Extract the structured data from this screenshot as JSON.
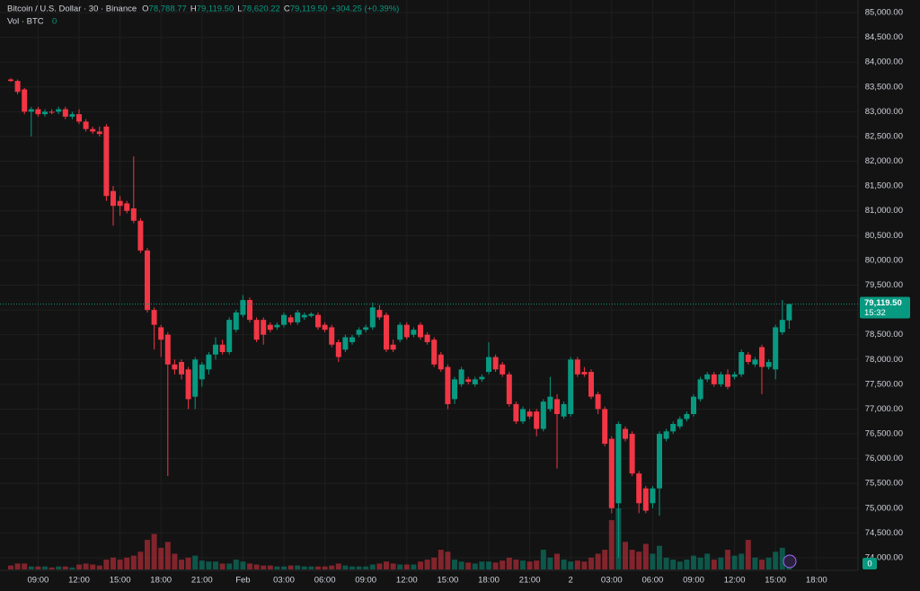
{
  "chart_data": {
    "type": "candlestick",
    "title": "Bitcoin / U.S. Dollar · 30 · Binance",
    "header": [
      {
        "key": "O",
        "value": "78,788.77"
      },
      {
        "key": "H",
        "value": "79,119.50"
      },
      {
        "key": "L",
        "value": "78,620.22"
      },
      {
        "key": "C",
        "value": "79,119.50"
      }
    ],
    "change": "+304.25 (+0.39%)",
    "volume_title": "Vol · BTC",
    "volume_value": "0",
    "volume_axis_label": "0",
    "last_price": {
      "value": 79119.5,
      "label": "79,119.50"
    },
    "countdown": "15:32",
    "up_color": "#089981",
    "down_color": "#f23645",
    "grid": true,
    "categories": [
      null,
      null,
      null,
      null,
      "09:00",
      null,
      null,
      null,
      null,
      null,
      "12:00",
      null,
      null,
      null,
      null,
      null,
      "15:00",
      null,
      null,
      null,
      null,
      null,
      "18:00",
      null,
      null,
      null,
      null,
      null,
      "21:00",
      null,
      null,
      null,
      null,
      null,
      "Feb",
      null,
      null,
      null,
      null,
      null,
      "03:00",
      null,
      null,
      null,
      null,
      null,
      "06:00",
      null,
      null,
      null,
      null,
      null,
      "09:00",
      null,
      null,
      null,
      null,
      null,
      "12:00",
      null,
      null,
      null,
      null,
      null,
      "15:00",
      null,
      null,
      null,
      null,
      null,
      "18:00",
      null,
      null,
      null,
      null,
      null,
      "21:00",
      null,
      null,
      null,
      null,
      null,
      "2",
      null,
      null,
      null,
      null,
      null,
      "03:00",
      null,
      null,
      null,
      null,
      null,
      "06:00",
      null,
      null,
      null,
      null,
      null,
      "09:00",
      null,
      null,
      null,
      null,
      null,
      "12:00",
      null,
      null,
      null,
      null,
      null,
      "15:00",
      null,
      null,
      null,
      null,
      null,
      "18:00"
    ],
    "ohlc": [
      [
        83650,
        83680,
        83600,
        83620
      ],
      [
        83620,
        83650,
        83350,
        83400
      ],
      [
        83450,
        83480,
        82950,
        83000
      ],
      [
        83000,
        83100,
        82500,
        83050
      ],
      [
        83050,
        83100,
        82900,
        82950
      ],
      [
        82950,
        83050,
        82900,
        83000
      ],
      [
        83000,
        83050,
        82950,
        82980
      ],
      [
        83000,
        83100,
        82950,
        83050
      ],
      [
        83050,
        83100,
        82850,
        82900
      ],
      [
        82900,
        83000,
        82850,
        82950
      ],
      [
        82950,
        83050,
        82750,
        82800
      ],
      [
        82800,
        82850,
        82600,
        82650
      ],
      [
        82650,
        82700,
        82550,
        82600
      ],
      [
        82600,
        82700,
        82500,
        82550
      ],
      [
        82700,
        82750,
        81200,
        81300
      ],
      [
        81400,
        81500,
        80700,
        81100
      ],
      [
        81200,
        81300,
        80900,
        81100
      ],
      [
        81150,
        81200,
        80950,
        81000
      ],
      [
        81050,
        82100,
        80750,
        80800
      ],
      [
        80800,
        80850,
        80150,
        80200
      ],
      [
        80200,
        80250,
        78950,
        79000
      ],
      [
        79000,
        79050,
        78200,
        78700
      ],
      [
        78650,
        78700,
        78050,
        78400
      ],
      [
        78500,
        78550,
        75650,
        77900
      ],
      [
        77900,
        78000,
        77700,
        77800
      ],
      [
        77950,
        78000,
        77600,
        77700
      ],
      [
        77800,
        77850,
        77000,
        77200
      ],
      [
        77250,
        78050,
        77000,
        78000
      ],
      [
        77600,
        77950,
        77450,
        77900
      ],
      [
        77800,
        78150,
        77700,
        78100
      ],
      [
        78100,
        78450,
        78000,
        78300
      ],
      [
        78300,
        78400,
        78100,
        78150
      ],
      [
        78150,
        78850,
        78100,
        78800
      ],
      [
        78600,
        79000,
        78550,
        78950
      ],
      [
        78900,
        79300,
        78850,
        79200
      ],
      [
        79200,
        79250,
        78750,
        78800
      ],
      [
        78800,
        78850,
        78350,
        78400
      ],
      [
        78800,
        78850,
        78300,
        78500
      ],
      [
        78700,
        78750,
        78550,
        78600
      ],
      [
        78650,
        78750,
        78600,
        78700
      ],
      [
        78700,
        78950,
        78650,
        78900
      ],
      [
        78850,
        78900,
        78700,
        78750
      ],
      [
        78750,
        79000,
        78700,
        78950
      ],
      [
        78850,
        78950,
        78800,
        78900
      ],
      [
        78880,
        78950,
        78850,
        78920
      ],
      [
        78900,
        78950,
        78600,
        78650
      ],
      [
        78700,
        78750,
        78550,
        78600
      ],
      [
        78650,
        78700,
        78250,
        78300
      ],
      [
        78350,
        78400,
        77950,
        78050
      ],
      [
        78200,
        78500,
        78150,
        78450
      ],
      [
        78350,
        78500,
        78300,
        78450
      ],
      [
        78500,
        78650,
        78450,
        78600
      ],
      [
        78600,
        78700,
        78550,
        78650
      ],
      [
        78650,
        79150,
        78600,
        79050
      ],
      [
        79000,
        79100,
        78800,
        78850
      ],
      [
        78900,
        78950,
        78150,
        78200
      ],
      [
        78300,
        78400,
        78150,
        78200
      ],
      [
        78400,
        78750,
        78350,
        78700
      ],
      [
        78700,
        78750,
        78400,
        78450
      ],
      [
        78500,
        78650,
        78450,
        78600
      ],
      [
        78700,
        78750,
        78400,
        78450
      ],
      [
        78500,
        78550,
        78300,
        78350
      ],
      [
        78400,
        78450,
        77850,
        77900
      ],
      [
        78100,
        78150,
        77750,
        77800
      ],
      [
        77850,
        77900,
        77000,
        77100
      ],
      [
        77200,
        77650,
        77100,
        77600
      ],
      [
        77500,
        77850,
        77450,
        77800
      ],
      [
        77600,
        77650,
        77500,
        77550
      ],
      [
        77500,
        77650,
        77450,
        77600
      ],
      [
        77600,
        77700,
        77550,
        77650
      ],
      [
        77750,
        78350,
        77700,
        78050
      ],
      [
        78050,
        78100,
        77750,
        77800
      ],
      [
        77900,
        77950,
        77650,
        77700
      ],
      [
        77700,
        77750,
        77050,
        77100
      ],
      [
        77100,
        77150,
        76700,
        76750
      ],
      [
        76750,
        77050,
        76700,
        77000
      ],
      [
        76950,
        77000,
        76800,
        76850
      ],
      [
        76950,
        77000,
        76450,
        76600
      ],
      [
        76600,
        77200,
        76550,
        77150
      ],
      [
        77000,
        77650,
        76950,
        77250
      ],
      [
        77200,
        77300,
        75800,
        76900
      ],
      [
        76850,
        77150,
        76800,
        77100
      ],
      [
        76900,
        78050,
        76850,
        78000
      ],
      [
        78000,
        78050,
        77650,
        77700
      ],
      [
        77750,
        77850,
        77650,
        77700
      ],
      [
        77750,
        77800,
        77200,
        77250
      ],
      [
        77300,
        77350,
        76900,
        77000
      ],
      [
        77000,
        77050,
        76250,
        76300
      ],
      [
        76400,
        76450,
        74900,
        75000
      ],
      [
        75100,
        76750,
        74000,
        76700
      ],
      [
        76600,
        76650,
        76350,
        76400
      ],
      [
        76500,
        76550,
        75650,
        75700
      ],
      [
        75700,
        75750,
        74900,
        75100
      ],
      [
        75400,
        75450,
        74900,
        74950
      ],
      [
        75100,
        75450,
        75000,
        75400
      ],
      [
        75400,
        76550,
        74850,
        76500
      ],
      [
        76400,
        76600,
        76350,
        76550
      ],
      [
        76550,
        76750,
        76500,
        76700
      ],
      [
        76650,
        76850,
        76600,
        76800
      ],
      [
        76800,
        76950,
        76750,
        76900
      ],
      [
        76900,
        77300,
        76850,
        77250
      ],
      [
        77200,
        77650,
        77150,
        77600
      ],
      [
        77600,
        77750,
        77550,
        77700
      ],
      [
        77700,
        77750,
        77450,
        77500
      ],
      [
        77500,
        77750,
        77450,
        77700
      ],
      [
        77700,
        77800,
        77400,
        77450
      ],
      [
        77650,
        77750,
        77600,
        77700
      ],
      [
        77700,
        78200,
        77650,
        78150
      ],
      [
        78100,
        78150,
        77900,
        77950
      ],
      [
        77900,
        78050,
        77850,
        78000
      ],
      [
        78250,
        78300,
        77300,
        77850
      ],
      [
        77850,
        78000,
        77800,
        77950
      ],
      [
        77800,
        78700,
        77600,
        78650
      ],
      [
        78550,
        79200,
        78500,
        78800
      ],
      [
        78788.77,
        79119.5,
        78620.22,
        79119.5
      ],
      null,
      null,
      null,
      null
    ],
    "volumes": [
      4,
      6,
      6,
      3,
      3,
      3,
      2,
      3,
      3,
      2,
      5,
      6,
      5,
      4,
      10,
      12,
      10,
      12,
      14,
      18,
      30,
      36,
      22,
      28,
      16,
      10,
      12,
      14,
      9,
      8,
      8,
      6,
      6,
      10,
      8,
      6,
      5,
      4,
      4,
      3,
      3,
      4,
      4,
      3,
      3,
      3,
      3,
      4,
      6,
      4,
      3,
      3,
      3,
      5,
      6,
      8,
      6,
      5,
      5,
      5,
      8,
      10,
      12,
      20,
      18,
      10,
      8,
      7,
      6,
      8,
      8,
      7,
      9,
      12,
      10,
      9,
      8,
      9,
      20,
      12,
      16,
      10,
      8,
      9,
      8,
      12,
      16,
      20,
      50,
      62,
      28,
      20,
      18,
      26,
      16,
      24,
      12,
      10,
      8,
      10,
      14,
      12,
      16,
      10,
      12,
      20,
      14,
      16,
      30,
      12,
      10,
      12,
      18,
      22,
      14,
      null,
      null,
      null,
      null
    ],
    "ylim": [
      74000,
      85000
    ],
    "yticks": [
      {
        "value": 74000,
        "label": "74,000.00"
      },
      {
        "value": 74500,
        "label": "74,500.00"
      },
      {
        "value": 75000,
        "label": "75,000.00"
      },
      {
        "value": 75500,
        "label": "75,500.00"
      },
      {
        "value": 76000,
        "label": "76,000.00"
      },
      {
        "value": 76500,
        "label": "76,500.00"
      },
      {
        "value": 77000,
        "label": "77,000.00"
      },
      {
        "value": 77500,
        "label": "77,500.00"
      },
      {
        "value": 78000,
        "label": "78,000.00"
      },
      {
        "value": 78500,
        "label": "78,500.00"
      },
      {
        "value": 79000,
        "label": "79,000.00"
      },
      {
        "value": 79500,
        "label": "79,500.00"
      },
      {
        "value": 80000,
        "label": "80,000.00"
      },
      {
        "value": 80500,
        "label": "80,500.00"
      },
      {
        "value": 81000,
        "label": "81,000.00"
      },
      {
        "value": 81500,
        "label": "81,500.00"
      },
      {
        "value": 82000,
        "label": "82,000.00"
      },
      {
        "value": 82500,
        "label": "82,500.00"
      },
      {
        "value": 83000,
        "label": "83,000.00"
      },
      {
        "value": 83500,
        "label": "83,500.00"
      },
      {
        "value": 84000,
        "label": "84,000.00"
      },
      {
        "value": 84500,
        "label": "84,500.00"
      },
      {
        "value": 85000,
        "label": "85,000.00"
      }
    ]
  }
}
